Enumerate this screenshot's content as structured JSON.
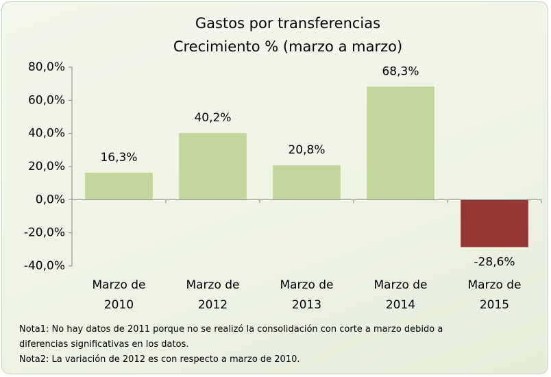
{
  "chart_data": {
    "type": "bar",
    "title": "Gastos por transferencias",
    "subtitle": "Crecimiento % (marzo a marzo)",
    "categories": [
      "Marzo de 2010",
      "Marzo de 2012",
      "Marzo de 2013",
      "Marzo de 2014",
      "Marzo de 2015"
    ],
    "values": [
      16.3,
      40.2,
      20.8,
      68.3,
      -28.6
    ],
    "value_labels": [
      "16,3%",
      "40,2%",
      "20,8%",
      "68,3%",
      "-28,6%"
    ],
    "colors": [
      "#c3d69b",
      "#c3d69b",
      "#c3d69b",
      "#c3d69b",
      "#953735"
    ],
    "ylim": [
      -40,
      80
    ],
    "yticks": [
      {
        "value": -40,
        "label": "-40,0%"
      },
      {
        "value": -20,
        "label": "-20,0%"
      },
      {
        "value": 0,
        "label": "0,0%"
      },
      {
        "value": 20,
        "label": "20,0%"
      },
      {
        "value": 40,
        "label": "40,0%"
      },
      {
        "value": 60,
        "label": "60,0%"
      },
      {
        "value": 80,
        "label": "80,0%"
      }
    ],
    "grid": false,
    "annotations": [
      "Nota1: No hay datos de 2011 porque no se realizó la consolidación con corte a marzo debido a diferencias significativas en los datos.",
      "Nota2: La variación de 2012 es con respecto a marzo de 2010."
    ]
  }
}
